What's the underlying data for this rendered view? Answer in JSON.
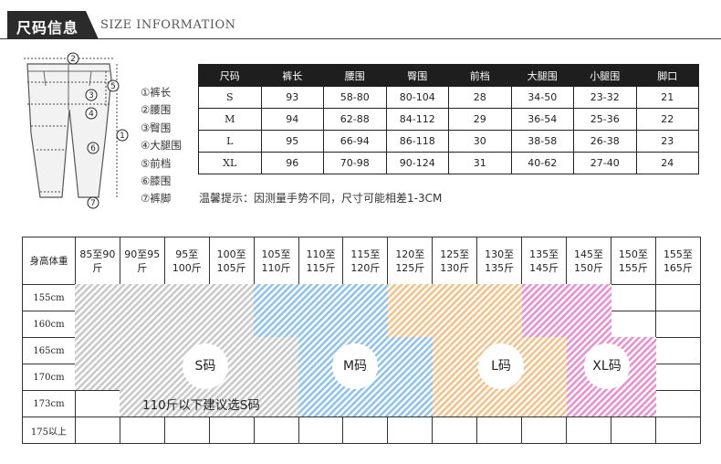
{
  "header": {
    "title": "尺码信息",
    "subtitle": "SIZE INFORMATION"
  },
  "legend": [
    "①裤长",
    "②腰围",
    "③臀围",
    "④大腿围",
    "⑤前档",
    "⑥膝围",
    "⑦裤脚"
  ],
  "size_table": {
    "headers": [
      "尺码",
      "裤长",
      "腰围",
      "臀围",
      "前档",
      "大腿围",
      "小腿围",
      "脚口"
    ],
    "rows": [
      [
        "S",
        "93",
        "58-80",
        "80-104",
        "28",
        "34-50",
        "23-32",
        "21"
      ],
      [
        "M",
        "94",
        "62-88",
        "84-112",
        "29",
        "36-54",
        "25-36",
        "22"
      ],
      [
        "L",
        "95",
        "66-94",
        "86-118",
        "30",
        "38-58",
        "26-38",
        "23"
      ],
      [
        "XL",
        "96",
        "70-98",
        "90-124",
        "31",
        "40-62",
        "27-40",
        "24"
      ]
    ]
  },
  "tip": "温馨提示：因测量手势不同，尺寸可能相差1-3CM",
  "recommend": {
    "corner": "身高体重",
    "weights": [
      [
        "85至90",
        "斤"
      ],
      [
        "90至95",
        "斤"
      ],
      [
        "95至",
        "100斤"
      ],
      [
        "100至",
        "105斤"
      ],
      [
        "105至",
        "110斤"
      ],
      [
        "110至",
        "115斤"
      ],
      [
        "115至",
        "120斤"
      ],
      [
        "120至",
        "125斤"
      ],
      [
        "125至",
        "130斤"
      ],
      [
        "130至",
        "135斤"
      ],
      [
        "135至",
        "145斤"
      ],
      [
        "145至",
        "150斤"
      ],
      [
        "150至",
        "155斤"
      ],
      [
        "155至",
        "165斤"
      ]
    ],
    "heights": [
      "155cm",
      "160cm",
      "165cm",
      "170cm",
      "173cm",
      "175以上"
    ],
    "labels": {
      "s": "S码",
      "m": "M码",
      "l": "L码",
      "xl": "XL码"
    },
    "note": "110斤以下建议选S码",
    "colors": {
      "s": "#c9c9c9",
      "m": "#8fc3ee",
      "l": "#f4c189",
      "xl": "#ea8fd0"
    }
  }
}
